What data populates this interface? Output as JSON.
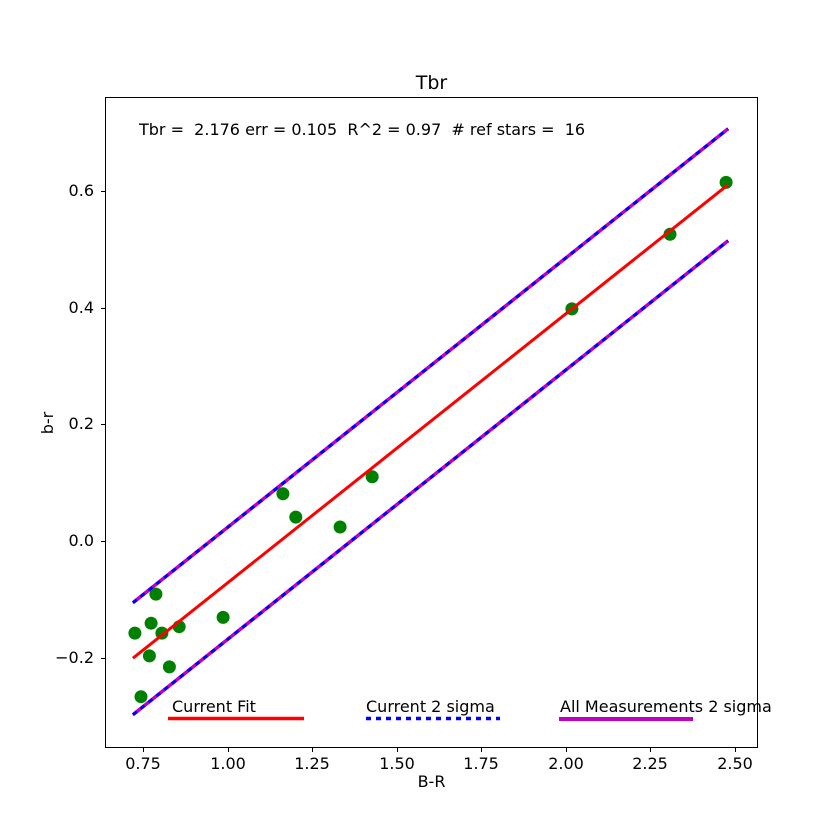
{
  "figure": {
    "title": "Tbr",
    "annotation": "Tbr =  2.176 err = 0.105  R^2 = 0.97  # ref stars =  16",
    "background": "#ffffff"
  },
  "axes": {
    "xlabel": "B-R",
    "ylabel": "b-r",
    "xtick_labels": [
      "0.75",
      "1.00",
      "1.25",
      "1.50",
      "1.75",
      "2.00",
      "2.25",
      "2.50"
    ],
    "xtick_values": [
      0.75,
      1.0,
      1.25,
      1.5,
      1.75,
      2.0,
      2.25,
      2.5
    ],
    "ytick_labels": [
      "0.6",
      "0.4",
      "0.2",
      "0.0",
      "−0.2"
    ],
    "ytick_values": [
      0.6,
      0.4,
      0.2,
      0.0,
      -0.2
    ],
    "xlim": [
      0.6405,
      2.5665
    ],
    "ylim": [
      -0.3533,
      0.7597
    ]
  },
  "legend": {
    "items": [
      {
        "label": "Current Fit",
        "color": "#ff0000",
        "style": "solid"
      },
      {
        "label": "Current 2 sigma",
        "color": "#0000ff",
        "style": "dotted"
      },
      {
        "label": "All Measurements 2 sigma",
        "color": "#bf00bf",
        "style": "solid"
      }
    ]
  },
  "chart_data": {
    "type": "scatter",
    "title": "Tbr",
    "xlabel": "B-R",
    "ylabel": "b-r",
    "xlim": [
      0.6405,
      2.5665
    ],
    "ylim": [
      -0.3533,
      0.7597
    ],
    "stats": {
      "Tbr": 2.176,
      "err": 0.105,
      "R_squared": 0.97,
      "ref_stars": 16
    },
    "marker_color": "#008000",
    "marker_diameter_px": 13,
    "points": [
      [
        0.726,
        -0.158
      ],
      [
        0.744,
        -0.267
      ],
      [
        0.769,
        -0.197
      ],
      [
        0.774,
        -0.141
      ],
      [
        0.788,
        -0.091
      ],
      [
        0.806,
        -0.158
      ],
      [
        0.828,
        -0.216
      ],
      [
        0.857,
        -0.147
      ],
      [
        0.987,
        -0.131
      ],
      [
        1.164,
        0.081
      ],
      [
        1.202,
        0.041
      ],
      [
        1.333,
        0.024
      ],
      [
        1.428,
        0.11
      ],
      [
        2.019,
        0.398
      ],
      [
        2.309,
        0.526
      ],
      [
        2.475,
        0.615
      ]
    ],
    "lines": [
      {
        "name": "all-measurements-2-sigma-upper",
        "color": "#bf00bf",
        "style": "solid",
        "width": 3.5,
        "x": [
          0.72,
          2.481
        ],
        "y": [
          -0.106,
          0.707
        ]
      },
      {
        "name": "all-measurements-2-sigma-lower",
        "color": "#bf00bf",
        "style": "solid",
        "width": 3.5,
        "x": [
          0.72,
          2.481
        ],
        "y": [
          -0.298,
          0.515
        ]
      },
      {
        "name": "current-2-sigma-upper",
        "color": "#0000ff",
        "style": "dotted",
        "width": 3,
        "x": [
          0.72,
          2.481
        ],
        "y": [
          -0.106,
          0.707
        ]
      },
      {
        "name": "current-2-sigma-lower",
        "color": "#0000ff",
        "style": "dotted",
        "width": 3,
        "x": [
          0.72,
          2.481
        ],
        "y": [
          -0.298,
          0.515
        ]
      },
      {
        "name": "current-fit",
        "color": "#ff0000",
        "style": "solid",
        "width": 3,
        "x": [
          0.72,
          2.481
        ],
        "y": [
          -0.201,
          0.611
        ]
      }
    ]
  }
}
